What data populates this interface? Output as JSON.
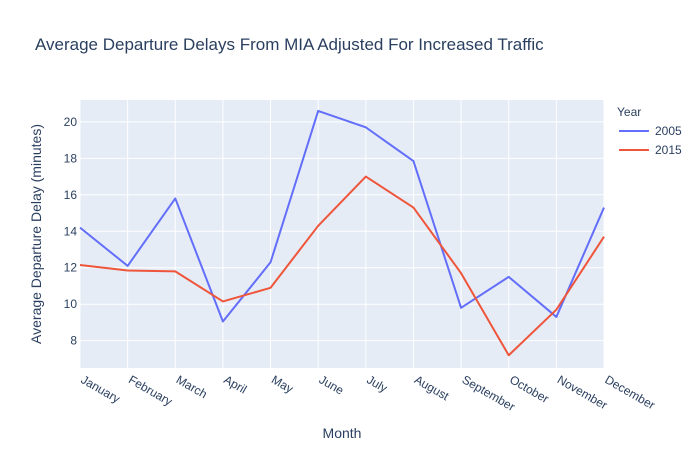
{
  "chart_data": {
    "type": "line",
    "title": "Average Departure Delays From MIA Adjusted For Increased Traffic",
    "xlabel": "Month",
    "ylabel": "Average Departure Delay (minutes)",
    "categories": [
      "January",
      "February",
      "March",
      "April",
      "May",
      "June",
      "July",
      "August",
      "September",
      "October",
      "November",
      "December"
    ],
    "ylim": [
      6.5,
      21.2
    ],
    "yticks": [
      8,
      10,
      12,
      14,
      16,
      18,
      20
    ],
    "grid": true,
    "legend": {
      "title": "Year",
      "position": "top-right"
    },
    "series": [
      {
        "name": "2005",
        "color": "#636efa",
        "values": [
          14.2,
          12.1,
          15.8,
          9.05,
          12.3,
          20.6,
          19.7,
          17.85,
          9.8,
          11.5,
          9.3,
          15.3
        ]
      },
      {
        "name": "2015",
        "color": "#ef553b",
        "values": [
          12.15,
          11.85,
          11.8,
          10.15,
          10.9,
          14.3,
          17.0,
          15.3,
          11.7,
          7.2,
          9.7,
          13.7
        ]
      }
    ]
  }
}
